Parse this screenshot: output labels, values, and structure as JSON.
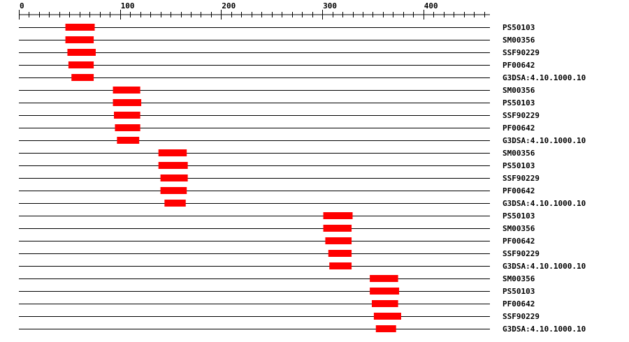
{
  "chart_data": {
    "type": "domain-map",
    "axis": {
      "min": 0,
      "max": 466,
      "major_ticks": [
        0,
        100,
        200,
        300,
        400
      ],
      "minor_step": 10
    },
    "bar_color": "#ff0000",
    "rows": [
      {
        "label": "PS50103",
        "start": 46,
        "end": 75
      },
      {
        "label": "SM00356",
        "start": 46,
        "end": 74
      },
      {
        "label": "SSF90229",
        "start": 48,
        "end": 76
      },
      {
        "label": "PF00642",
        "start": 49,
        "end": 74
      },
      {
        "label": "G3DSA:4.10.1000.10",
        "start": 52,
        "end": 74
      },
      {
        "label": "SM00356",
        "start": 93,
        "end": 120
      },
      {
        "label": "PS50103",
        "start": 93,
        "end": 121
      },
      {
        "label": "SSF90229",
        "start": 94,
        "end": 120
      },
      {
        "label": "PF00642",
        "start": 95,
        "end": 120
      },
      {
        "label": "G3DSA:4.10.1000.10",
        "start": 97,
        "end": 119
      },
      {
        "label": "SM00356",
        "start": 138,
        "end": 166
      },
      {
        "label": "PS50103",
        "start": 138,
        "end": 167
      },
      {
        "label": "SSF90229",
        "start": 140,
        "end": 167
      },
      {
        "label": "PF00642",
        "start": 140,
        "end": 166
      },
      {
        "label": "G3DSA:4.10.1000.10",
        "start": 144,
        "end": 165
      },
      {
        "label": "PS50103",
        "start": 301,
        "end": 330
      },
      {
        "label": "SM00356",
        "start": 301,
        "end": 329
      },
      {
        "label": "PF00642",
        "start": 303,
        "end": 329
      },
      {
        "label": "SSF90229",
        "start": 306,
        "end": 329
      },
      {
        "label": "G3DSA:4.10.1000.10",
        "start": 307,
        "end": 329
      },
      {
        "label": "SM00356",
        "start": 347,
        "end": 375
      },
      {
        "label": "PS50103",
        "start": 347,
        "end": 376
      },
      {
        "label": "PF00642",
        "start": 349,
        "end": 375
      },
      {
        "label": "SSF90229",
        "start": 351,
        "end": 378
      },
      {
        "label": "G3DSA:4.10.1000.10",
        "start": 353,
        "end": 373
      }
    ]
  }
}
